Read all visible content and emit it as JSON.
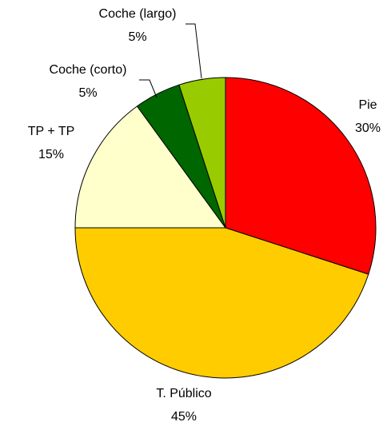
{
  "chart_data": {
    "type": "pie",
    "categories": [
      "Pie",
      "T. Público",
      "TP + TP",
      "Coche (corto)",
      "Coche (largo)"
    ],
    "values": [
      30,
      45,
      15,
      5,
      5
    ],
    "value_labels": [
      "30%",
      "45%",
      "15%",
      "5%",
      "5%"
    ],
    "colors": [
      "#ff0000",
      "#ffcc00",
      "#ffffcc",
      "#006600",
      "#99cc00"
    ]
  }
}
